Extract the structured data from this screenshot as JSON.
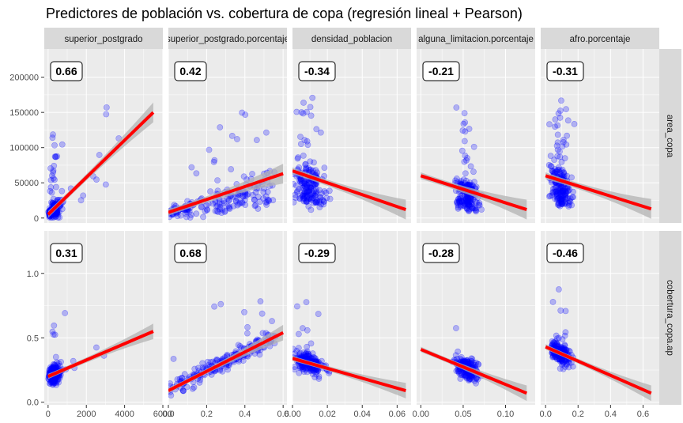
{
  "title": "Predictores de población vs. cobertura de copa (regresión lineal + Pearson)",
  "chart_data": {
    "type": "scatter",
    "title": "Predictores de población vs. cobertura de copa (regresión lineal + Pearson)",
    "point_color": "#0000ff",
    "line_color": "#ff0000",
    "band_color": "#b3b3b3",
    "panel_bg": "#ebebeb",
    "strip_bg": "#d9d9d9",
    "columns": [
      {
        "label": "superior_postgrado",
        "xlim": [
          -200,
          6000
        ],
        "ticks": [
          0,
          2000,
          4000,
          6000
        ],
        "tick_labels": [
          "0",
          "2000",
          "4000",
          "6000"
        ]
      },
      {
        "label": "superior_postgrado.porcentaje",
        "xlim": [
          0,
          0.62
        ],
        "ticks": [
          0.0,
          0.2,
          0.4,
          0.6
        ],
        "tick_labels": [
          "0.0",
          "0.2",
          "0.4",
          "0.6"
        ]
      },
      {
        "label": "densidad_poblacion",
        "xlim": [
          0,
          0.068
        ],
        "ticks": [
          0.0,
          0.02,
          0.04,
          0.06
        ],
        "tick_labels": [
          "0.00",
          "0.02",
          "0.04",
          "0.06"
        ]
      },
      {
        "label": "alguna_limitacion.porcentaje",
        "xlim": [
          -0.005,
          0.135
        ],
        "ticks": [
          0.0,
          0.05,
          0.1
        ],
        "tick_labels": [
          "0.00",
          "0.05",
          "0.10"
        ]
      },
      {
        "label": "afro.porcentaje",
        "xlim": [
          -0.03,
          0.7
        ],
        "ticks": [
          0.0,
          0.2,
          0.4,
          0.6
        ],
        "tick_labels": [
          "0.0",
          "0.2",
          "0.4",
          "0.6"
        ]
      }
    ],
    "rows": [
      {
        "label": "area_copa",
        "ylim": [
          -7000,
          240000
        ],
        "ticks": [
          0,
          50000,
          100000,
          150000,
          200000
        ],
        "tick_labels": [
          "0",
          "50000",
          "100000",
          "150000",
          "200000"
        ]
      },
      {
        "label": "cobertura_copa.ap",
        "ylim": [
          -0.02,
          1.33
        ],
        "ticks": [
          0.0,
          0.5,
          1.0
        ],
        "tick_labels": [
          "0.0",
          "0.5",
          "1.0"
        ]
      }
    ],
    "panels": [
      {
        "row": 0,
        "col": 0,
        "r": "0.66",
        "fit": [
          [
            0,
            5000
          ],
          [
            5500,
            150000
          ]
        ]
      },
      {
        "row": 0,
        "col": 1,
        "r": "0.42",
        "fit": [
          [
            0.0,
            8000
          ],
          [
            0.6,
            63000
          ]
        ]
      },
      {
        "row": 0,
        "col": 2,
        "r": "-0.34",
        "fit": [
          [
            0.0,
            67000
          ],
          [
            0.065,
            12000
          ]
        ]
      },
      {
        "row": 0,
        "col": 3,
        "r": "-0.21",
        "fit": [
          [
            0.0,
            60000
          ],
          [
            0.125,
            12000
          ]
        ]
      },
      {
        "row": 0,
        "col": 4,
        "r": "-0.31",
        "fit": [
          [
            0.0,
            60000
          ],
          [
            0.65,
            13000
          ]
        ]
      },
      {
        "row": 1,
        "col": 0,
        "r": "0.31",
        "fit": [
          [
            0,
            0.2
          ],
          [
            5500,
            0.55
          ]
        ]
      },
      {
        "row": 1,
        "col": 1,
        "r": "0.68",
        "fit": [
          [
            0.0,
            0.09
          ],
          [
            0.6,
            0.54
          ]
        ]
      },
      {
        "row": 1,
        "col": 2,
        "r": "-0.29",
        "fit": [
          [
            0.0,
            0.34
          ],
          [
            0.065,
            0.09
          ]
        ]
      },
      {
        "row": 1,
        "col": 3,
        "r": "-0.28",
        "fit": [
          [
            0.0,
            0.41
          ],
          [
            0.125,
            0.07
          ]
        ]
      },
      {
        "row": 1,
        "col": 4,
        "r": "-0.46",
        "fit": [
          [
            0.0,
            0.43
          ],
          [
            0.65,
            0.07
          ]
        ]
      }
    ]
  }
}
